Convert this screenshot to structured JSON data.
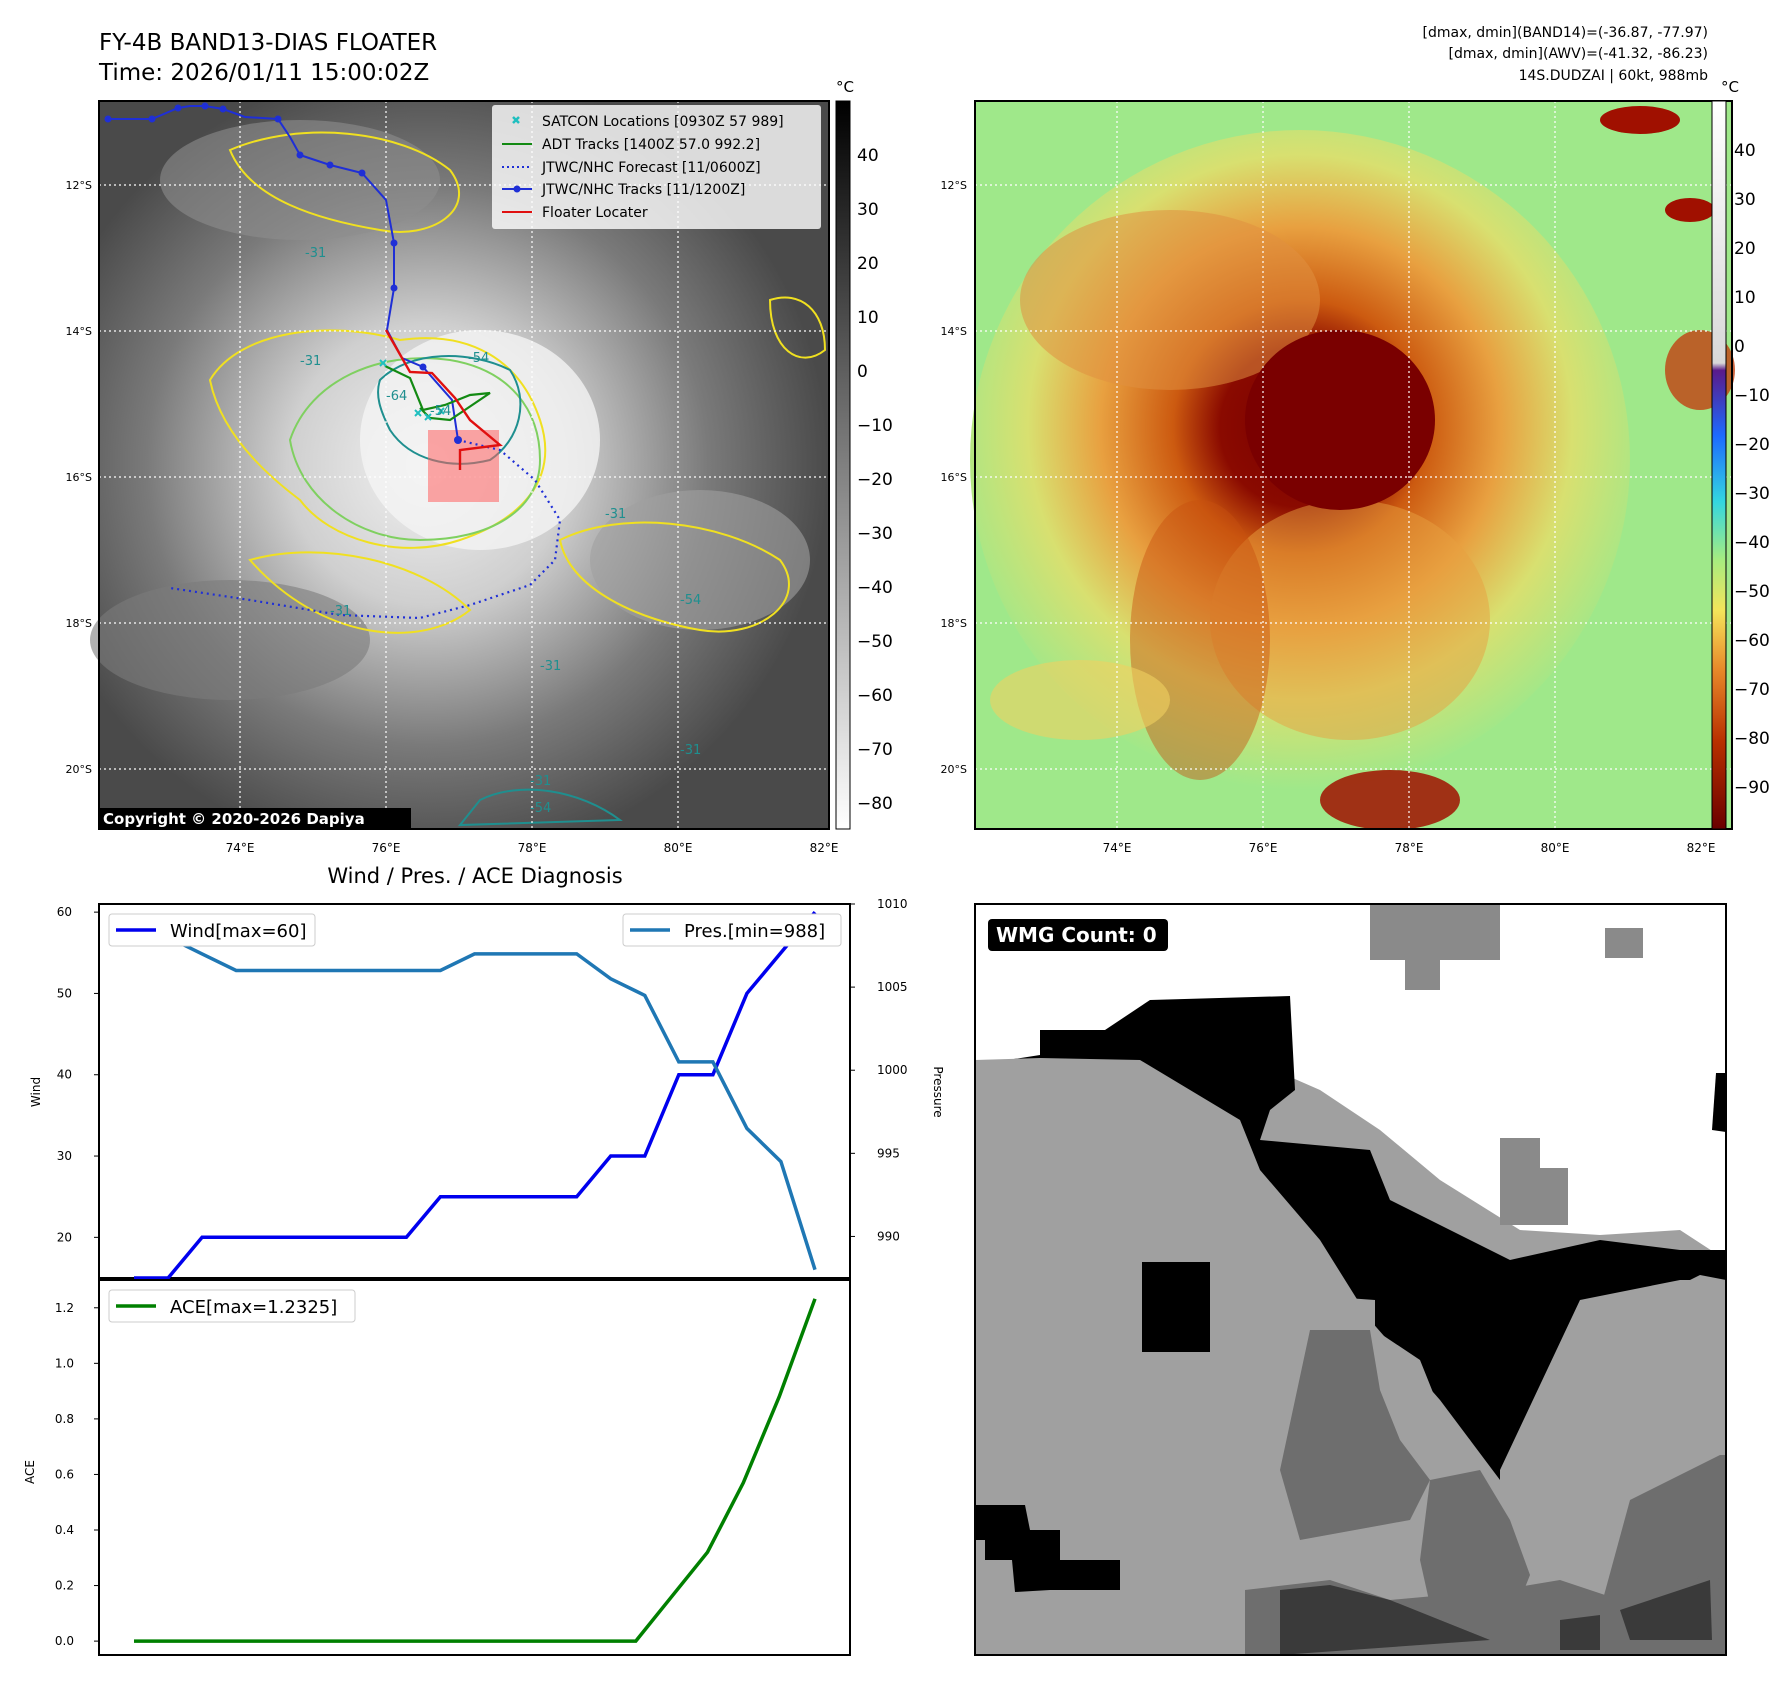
{
  "header": {
    "title_line1": "FY-4B BAND13-DIAS FLOATER",
    "title_line2": "Time: 2026/01/11 15:00:02Z",
    "info_line1": "[dmax, dmin](BAND14)=(-36.87, -77.97)",
    "info_line2": "[dmax, dmin](AWV)=(-41.32, -86.23)",
    "info_line3": "14S.DUDZAI | 60kt, 988mb"
  },
  "map_axes": {
    "lat_labels": [
      "12°S",
      "14°S",
      "16°S",
      "18°S",
      "20°S"
    ],
    "lon_labels": [
      "74°E",
      "76°E",
      "78°E",
      "80°E",
      "82°E"
    ]
  },
  "copyright": "Copyright © 2020-2026 Dapiya",
  "legend": [
    {
      "label": "SATCON Locations [0930Z 57 989]",
      "color": "#1fbfbf",
      "kind": "x"
    },
    {
      "label": "ADT Tracks [1400Z 57.0 992.2]",
      "color": "#138a13",
      "kind": "line"
    },
    {
      "label": "JTWC/NHC Forecast [11/0600Z]",
      "color": "#1f2fd6",
      "kind": "dotted"
    },
    {
      "label": "JTWC/NHC Tracks [11/1200Z]",
      "color": "#1f2fd6",
      "kind": "line-dot"
    },
    {
      "label": "Floater Locater",
      "color": "#e01010",
      "kind": "line"
    }
  ],
  "contour_labels": [
    "-31",
    "-31",
    "-54",
    "-64",
    "-54",
    "-31",
    "-31",
    "-54",
    "-31",
    "-31",
    "-31",
    "-54"
  ],
  "colorbar_gray": {
    "unit": "°C",
    "ticks": [
      "40",
      "30",
      "20",
      "10",
      "0",
      "−10",
      "−20",
      "−30",
      "−40",
      "−50",
      "−60",
      "−70",
      "−80"
    ]
  },
  "colorbar_color": {
    "unit": "°C",
    "ticks": [
      "40",
      "30",
      "20",
      "10",
      "0",
      "−10",
      "−20",
      "−30",
      "−40",
      "−50",
      "−60",
      "−70",
      "−80",
      "−90"
    ],
    "colors": {
      "warm_top": "#ffffff",
      "zero": "#6a2a9a",
      "blue": "#1c6bff",
      "cyan": "#33d6e0",
      "green": "#a6ec80",
      "yellow": "#f4e45a",
      "orange": "#e88a2a",
      "darkred": "#7a0000"
    }
  },
  "chart_title": "Wind / Pres. / ACE Diagnosis",
  "wmg_label": "WMG Count: 0",
  "chart_data": [
    {
      "type": "line",
      "ylabel": "Wind",
      "ylim": [
        15,
        61
      ],
      "yticks": [
        20,
        30,
        40,
        50,
        60
      ],
      "series": [
        {
          "name": "Wind[max=60]",
          "color": "#0000ee",
          "values": [
            15,
            15,
            20,
            20,
            20,
            20,
            20,
            20,
            20,
            25,
            25,
            25,
            25,
            25,
            30,
            30,
            40,
            40,
            50,
            55,
            60
          ]
        }
      ],
      "legend_position": "upper left"
    },
    {
      "type": "line",
      "ylabel": "Pressure",
      "ylim": [
        987.5,
        1010
      ],
      "yticks": [
        "990",
        "995",
        "1000",
        "1005",
        "1010"
      ],
      "series": [
        {
          "name": "Pres.[min=988]",
          "color": "#1f77b4",
          "values": [
            1008,
            1008,
            1007,
            1006,
            1006,
            1006,
            1006,
            1006,
            1006,
            1006,
            1007,
            1007,
            1007,
            1007,
            1005.5,
            1004.5,
            1000.5,
            1000.5,
            996.5,
            994.5,
            988
          ]
        }
      ],
      "legend_position": "upper right"
    },
    {
      "type": "line",
      "ylabel": "ACE",
      "ylim": [
        -0.05,
        1.3
      ],
      "yticks": [
        "0.0",
        "0.2",
        "0.4",
        "0.6",
        "0.8",
        "1.0",
        "1.2"
      ],
      "series": [
        {
          "name": "ACE[max=1.2325]",
          "color": "#008000",
          "values": [
            0,
            0,
            0,
            0,
            0,
            0,
            0,
            0,
            0,
            0,
            0,
            0,
            0,
            0,
            0,
            0.16,
            0.32,
            0.57,
            0.88,
            1.2325
          ]
        }
      ],
      "legend_position": "upper left"
    }
  ]
}
